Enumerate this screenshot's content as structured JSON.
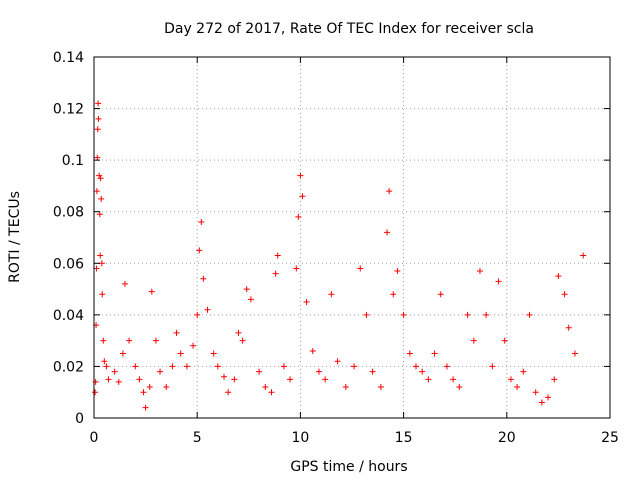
{
  "chart_data": {
    "type": "scatter",
    "title": "Day 272 of 2017, Rate Of TEC Index for receiver scla",
    "xlabel": "GPS time / hours",
    "ylabel": "ROTI / TECUs",
    "xlim": [
      0,
      25
    ],
    "ylim": [
      0,
      0.14
    ],
    "xticks": [
      0,
      5,
      10,
      15,
      20,
      25
    ],
    "yticks": [
      0,
      0.02,
      0.04,
      0.06,
      0.08,
      0.1,
      0.12,
      0.14
    ],
    "grid": true,
    "marker": "+",
    "color": "#ff0000",
    "points": [
      [
        0.05,
        0.01
      ],
      [
        0.08,
        0.014
      ],
      [
        0.1,
        0.036
      ],
      [
        0.12,
        0.058
      ],
      [
        0.14,
        0.088
      ],
      [
        0.16,
        0.101
      ],
      [
        0.18,
        0.112
      ],
      [
        0.2,
        0.122
      ],
      [
        0.22,
        0.116
      ],
      [
        0.25,
        0.094
      ],
      [
        0.28,
        0.079
      ],
      [
        0.3,
        0.063
      ],
      [
        0.32,
        0.093
      ],
      [
        0.35,
        0.085
      ],
      [
        0.38,
        0.06
      ],
      [
        0.4,
        0.048
      ],
      [
        0.45,
        0.03
      ],
      [
        0.5,
        0.022
      ],
      [
        0.6,
        0.02
      ],
      [
        0.7,
        0.015
      ],
      [
        1.0,
        0.018
      ],
      [
        1.2,
        0.014
      ],
      [
        1.4,
        0.025
      ],
      [
        1.5,
        0.052
      ],
      [
        1.7,
        0.03
      ],
      [
        2.0,
        0.02
      ],
      [
        2.2,
        0.015
      ],
      [
        2.4,
        0.01
      ],
      [
        2.5,
        0.004
      ],
      [
        2.7,
        0.012
      ],
      [
        2.8,
        0.049
      ],
      [
        3.0,
        0.03
      ],
      [
        3.2,
        0.018
      ],
      [
        3.5,
        0.012
      ],
      [
        3.8,
        0.02
      ],
      [
        4.0,
        0.033
      ],
      [
        4.2,
        0.025
      ],
      [
        4.5,
        0.02
      ],
      [
        4.8,
        0.028
      ],
      [
        5.0,
        0.04
      ],
      [
        5.1,
        0.065
      ],
      [
        5.2,
        0.076
      ],
      [
        5.3,
        0.054
      ],
      [
        5.5,
        0.042
      ],
      [
        5.8,
        0.025
      ],
      [
        6.0,
        0.02
      ],
      [
        6.3,
        0.016
      ],
      [
        6.5,
        0.01
      ],
      [
        6.8,
        0.015
      ],
      [
        7.0,
        0.033
      ],
      [
        7.2,
        0.03
      ],
      [
        7.4,
        0.05
      ],
      [
        7.6,
        0.046
      ],
      [
        8.0,
        0.018
      ],
      [
        8.3,
        0.012
      ],
      [
        8.6,
        0.01
      ],
      [
        8.8,
        0.056
      ],
      [
        8.9,
        0.063
      ],
      [
        9.2,
        0.02
      ],
      [
        9.5,
        0.015
      ],
      [
        9.8,
        0.058
      ],
      [
        9.9,
        0.078
      ],
      [
        10.0,
        0.094
      ],
      [
        10.1,
        0.086
      ],
      [
        10.3,
        0.045
      ],
      [
        10.6,
        0.026
      ],
      [
        10.9,
        0.018
      ],
      [
        11.2,
        0.015
      ],
      [
        11.5,
        0.048
      ],
      [
        11.8,
        0.022
      ],
      [
        12.2,
        0.012
      ],
      [
        12.6,
        0.02
      ],
      [
        12.9,
        0.058
      ],
      [
        13.2,
        0.04
      ],
      [
        13.5,
        0.018
      ],
      [
        13.9,
        0.012
      ],
      [
        14.2,
        0.072
      ],
      [
        14.3,
        0.088
      ],
      [
        14.5,
        0.048
      ],
      [
        14.7,
        0.057
      ],
      [
        15.0,
        0.04
      ],
      [
        15.3,
        0.025
      ],
      [
        15.6,
        0.02
      ],
      [
        15.9,
        0.018
      ],
      [
        16.2,
        0.015
      ],
      [
        16.5,
        0.025
      ],
      [
        16.8,
        0.048
      ],
      [
        17.1,
        0.02
      ],
      [
        17.4,
        0.015
      ],
      [
        17.7,
        0.012
      ],
      [
        18.1,
        0.04
      ],
      [
        18.4,
        0.03
      ],
      [
        18.7,
        0.057
      ],
      [
        19.0,
        0.04
      ],
      [
        19.3,
        0.02
      ],
      [
        19.6,
        0.053
      ],
      [
        19.9,
        0.03
      ],
      [
        20.2,
        0.015
      ],
      [
        20.5,
        0.012
      ],
      [
        20.8,
        0.018
      ],
      [
        21.1,
        0.04
      ],
      [
        21.4,
        0.01
      ],
      [
        21.7,
        0.006
      ],
      [
        22.0,
        0.008
      ],
      [
        22.3,
        0.015
      ],
      [
        22.5,
        0.055
      ],
      [
        22.8,
        0.048
      ],
      [
        23.0,
        0.035
      ],
      [
        23.3,
        0.025
      ],
      [
        23.7,
        0.063
      ]
    ]
  }
}
